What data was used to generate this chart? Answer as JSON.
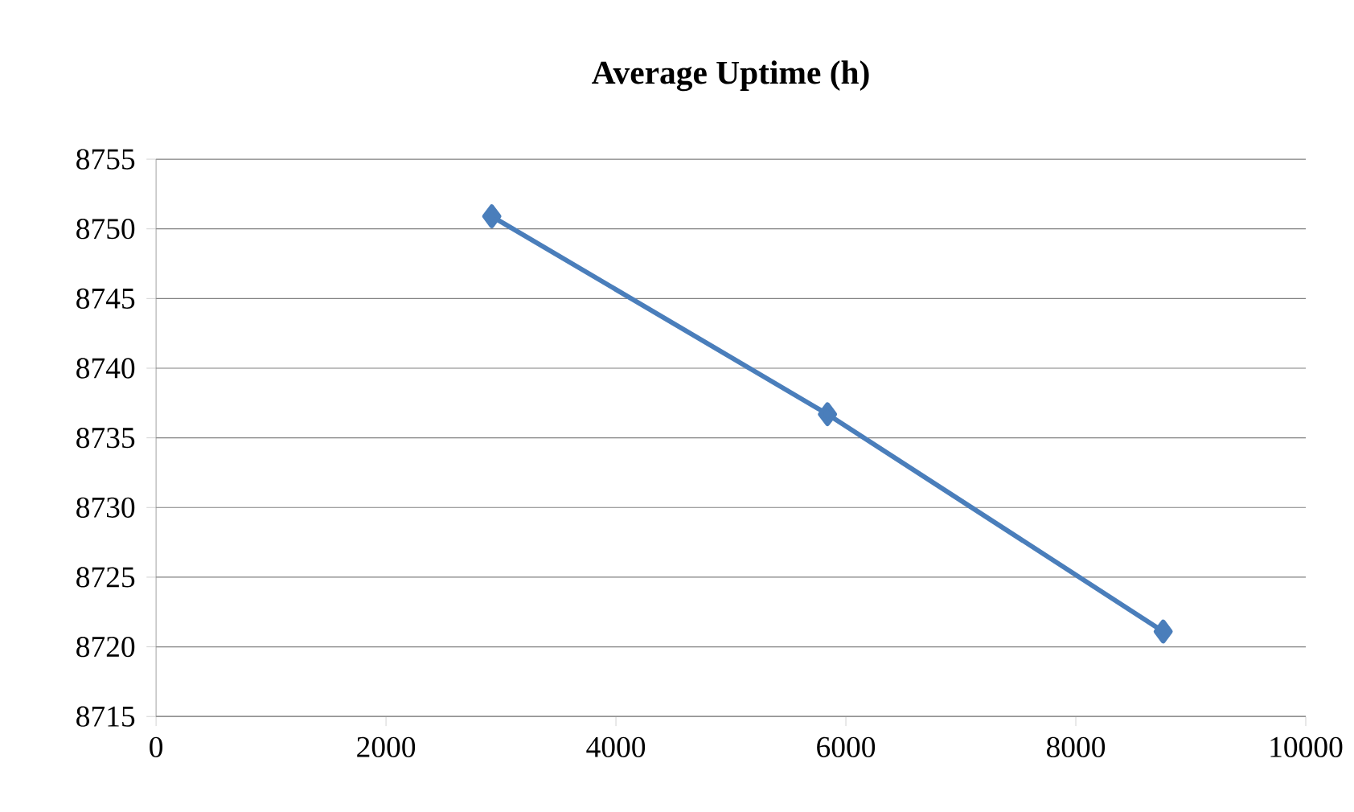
{
  "chart_data": {
    "type": "line",
    "title": "Average Uptime (h)",
    "x": [
      2920,
      5840,
      8760
    ],
    "series": [
      {
        "color": "#4a7ebb",
        "values": [
          8750.9,
          8736.7,
          8721.1
        ]
      }
    ],
    "xlim": [
      0,
      10000
    ],
    "xticks": [
      0,
      2000,
      4000,
      6000,
      8000,
      10000
    ],
    "ylim": [
      8715,
      8755
    ],
    "yticks": [
      8715,
      8720,
      8725,
      8730,
      8735,
      8740,
      8745,
      8750,
      8755
    ],
    "grid": "y",
    "marker": "diamond",
    "line_style": "solid"
  }
}
